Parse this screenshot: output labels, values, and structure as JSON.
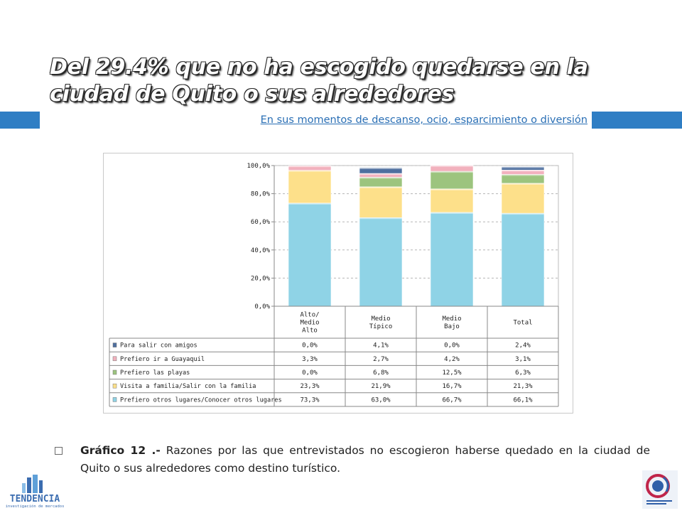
{
  "slide": {
    "title": "Del 29.4% que no ha escogido quedarse en la ciudad de Quito o sus alrededores",
    "subtitle": "En sus momentos de descanso, ocio, esparcimiento o diversión",
    "caption_bold": "Gráfico 12 .-",
    "caption_text": " Razones por las que entrevistados no escogieron haberse quedado en la ciudad de Quito o sus alrededores como destino turístico.",
    "accent_color": "#2f7ec4",
    "logo_left_text": "TENDENCIA",
    "logo_left_sub": "investigación de mercados"
  },
  "chart_data": {
    "type": "bar",
    "stacked": true,
    "categories": [
      "Alto/ Medio Alto",
      "Medio Típico",
      "Medio Bajo",
      "Total"
    ],
    "ylim": [
      0,
      100
    ],
    "yticks": [
      "0,0%",
      "20,0%",
      "40,0%",
      "60,0%",
      "80,0%",
      "100,0%"
    ],
    "series": [
      {
        "name": "Prefiero otros lugares/Conocer otros lugares",
        "color": "#8fd3e6",
        "values": [
          73.3,
          63.0,
          66.7,
          66.1
        ],
        "labels": [
          "73,3%",
          "63,0%",
          "66,7%",
          "66,1%"
        ]
      },
      {
        "name": "Visita a familia/Salir con la familia",
        "color": "#fde08a",
        "values": [
          23.3,
          21.9,
          16.7,
          21.3
        ],
        "labels": [
          "23,3%",
          "21,9%",
          "16,7%",
          "21,3%"
        ]
      },
      {
        "name": "Prefiero las playas",
        "color": "#9cc47e",
        "values": [
          0.0,
          6.8,
          12.5,
          6.3
        ],
        "labels": [
          "0,0%",
          "6,8%",
          "12,5%",
          "6,3%"
        ]
      },
      {
        "name": "Prefiero ir a Guayaquil",
        "color": "#f2b1bd",
        "values": [
          3.3,
          2.7,
          4.2,
          3.1
        ],
        "labels": [
          "3,3%",
          "2,7%",
          "4,2%",
          "3,1%"
        ]
      },
      {
        "name": "Para salir con amigos",
        "color": "#4f6f9f",
        "values": [
          0.0,
          4.1,
          0.0,
          2.4
        ],
        "labels": [
          "0,0%",
          "4,1%",
          "0,0%",
          "2,4%"
        ]
      }
    ]
  }
}
